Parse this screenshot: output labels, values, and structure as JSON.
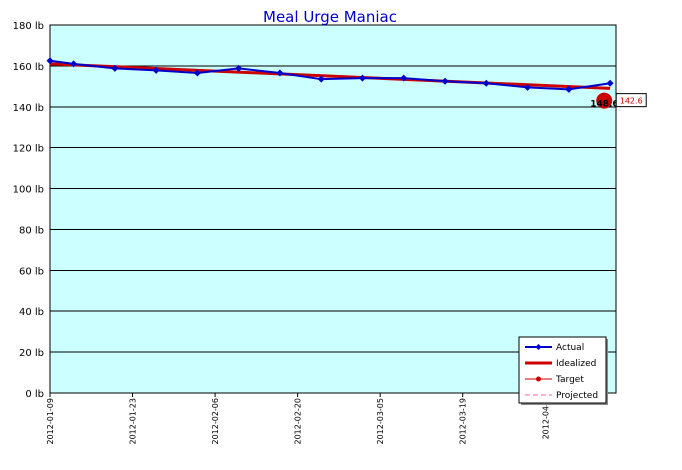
{
  "chart_data": {
    "type": "line",
    "title": "Meal Urge Maniac",
    "xlabel": "",
    "ylabel": "",
    "x_ticks": [
      "2012-01-09",
      "2012-01-23",
      "2012-02-06",
      "2012-02-20",
      "2012-03-05",
      "2012-03-19",
      "2012-04-0"
    ],
    "y_ticks": [
      "0 lb",
      "20 lb",
      "40 lb",
      "60 lb",
      "80 lb",
      "100 lb",
      "120 lb",
      "140 lb",
      "160 lb",
      "180 lb"
    ],
    "ylim": [
      0,
      180
    ],
    "xlim": [
      "2012-01-09",
      "2012-04-14"
    ],
    "grid": true,
    "legend_position": "bottom-right",
    "series": [
      {
        "name": "Actual",
        "color": "#0000cc",
        "points": [
          [
            "2012-01-09",
            162.5
          ],
          [
            "2012-01-13",
            161.0
          ],
          [
            "2012-01-20",
            158.8
          ],
          [
            "2012-01-27",
            157.8
          ],
          [
            "2012-02-03",
            156.5
          ],
          [
            "2012-02-10",
            158.8
          ],
          [
            "2012-02-17",
            156.5
          ],
          [
            "2012-02-24",
            153.5
          ],
          [
            "2012-03-02",
            154.0
          ],
          [
            "2012-03-09",
            154.0
          ],
          [
            "2012-03-16",
            152.5
          ],
          [
            "2012-03-23",
            151.5
          ],
          [
            "2012-03-30",
            149.5
          ],
          [
            "2012-04-06",
            148.5
          ],
          [
            "2012-04-13",
            151.5
          ]
        ]
      },
      {
        "name": "Idealized",
        "color": "#cc0000",
        "points": [
          [
            "2012-01-09",
            161.0
          ],
          [
            "2012-04-13",
            149.0
          ]
        ]
      },
      {
        "name": "Target",
        "color": "#cc0000",
        "points": [
          [
            "2012-04-12",
            143.0
          ]
        ]
      },
      {
        "name": "Projected",
        "color": "#ff66aa",
        "points": []
      }
    ],
    "annotations": [
      {
        "text": "148.6",
        "color": "#000000"
      },
      {
        "text": "142.6",
        "color": "#cc0000"
      }
    ]
  }
}
